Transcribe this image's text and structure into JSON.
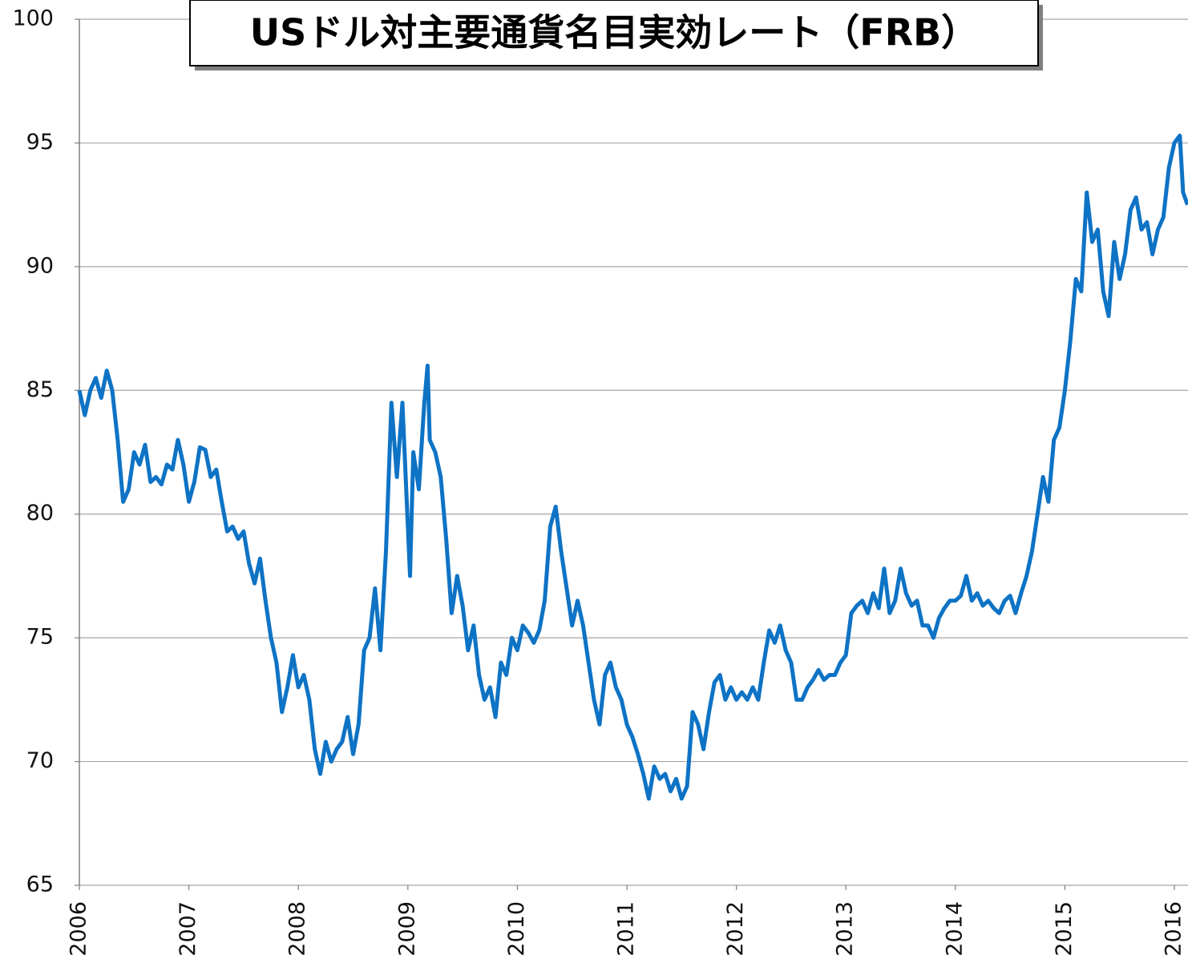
{
  "chart_data": {
    "type": "line",
    "title": "USドル対主要通貨名目実効レート（FRB）",
    "color": "#0e73c5",
    "grid": true,
    "ylim": [
      65,
      100
    ],
    "yticks": [
      65,
      70,
      75,
      80,
      85,
      90,
      95,
      100
    ],
    "xlim": [
      2006,
      2016.12
    ],
    "xticks": [
      2006,
      2007,
      2008,
      2009,
      2010,
      2011,
      2012,
      2013,
      2014,
      2015,
      2016
    ],
    "x": [
      2006.0,
      2006.05,
      2006.1,
      2006.15,
      2006.2,
      2006.25,
      2006.3,
      2006.35,
      2006.4,
      2006.45,
      2006.5,
      2006.55,
      2006.6,
      2006.65,
      2006.7,
      2006.75,
      2006.8,
      2006.85,
      2006.9,
      2006.95,
      2007.0,
      2007.05,
      2007.1,
      2007.15,
      2007.2,
      2007.25,
      2007.3,
      2007.35,
      2007.4,
      2007.45,
      2007.5,
      2007.55,
      2007.6,
      2007.65,
      2007.7,
      2007.75,
      2007.8,
      2007.85,
      2007.9,
      2007.95,
      2008.0,
      2008.05,
      2008.1,
      2008.15,
      2008.2,
      2008.25,
      2008.3,
      2008.35,
      2008.4,
      2008.45,
      2008.5,
      2008.55,
      2008.6,
      2008.65,
      2008.7,
      2008.75,
      2008.8,
      2008.85,
      2008.9,
      2008.95,
      2009.0,
      2009.02,
      2009.05,
      2009.1,
      2009.15,
      2009.18,
      2009.2,
      2009.25,
      2009.3,
      2009.35,
      2009.4,
      2009.45,
      2009.5,
      2009.55,
      2009.6,
      2009.65,
      2009.7,
      2009.75,
      2009.8,
      2009.85,
      2009.9,
      2009.95,
      2010.0,
      2010.05,
      2010.1,
      2010.15,
      2010.2,
      2010.25,
      2010.3,
      2010.35,
      2010.4,
      2010.45,
      2010.5,
      2010.55,
      2010.6,
      2010.65,
      2010.7,
      2010.75,
      2010.8,
      2010.85,
      2010.9,
      2010.95,
      2011.0,
      2011.05,
      2011.1,
      2011.15,
      2011.2,
      2011.25,
      2011.3,
      2011.35,
      2011.4,
      2011.45,
      2011.5,
      2011.55,
      2011.6,
      2011.65,
      2011.7,
      2011.75,
      2011.8,
      2011.85,
      2011.9,
      2011.95,
      2012.0,
      2012.05,
      2012.1,
      2012.15,
      2012.2,
      2012.25,
      2012.3,
      2012.35,
      2012.4,
      2012.45,
      2012.5,
      2012.55,
      2012.6,
      2012.65,
      2012.7,
      2012.75,
      2012.8,
      2012.85,
      2012.9,
      2012.95,
      2013.0,
      2013.05,
      2013.1,
      2013.15,
      2013.2,
      2013.25,
      2013.3,
      2013.35,
      2013.4,
      2013.45,
      2013.5,
      2013.55,
      2013.6,
      2013.65,
      2013.7,
      2013.75,
      2013.8,
      2013.85,
      2013.9,
      2013.95,
      2014.0,
      2014.05,
      2014.1,
      2014.15,
      2014.2,
      2014.25,
      2014.3,
      2014.35,
      2014.4,
      2014.45,
      2014.5,
      2014.55,
      2014.6,
      2014.65,
      2014.7,
      2014.75,
      2014.8,
      2014.85,
      2014.9,
      2014.95,
      2015.0,
      2015.05,
      2015.1,
      2015.15,
      2015.2,
      2015.25,
      2015.3,
      2015.35,
      2015.4,
      2015.45,
      2015.5,
      2015.55,
      2015.6,
      2015.65,
      2015.7,
      2015.75,
      2015.8,
      2015.85,
      2015.9,
      2015.95,
      2016.0,
      2016.05,
      2016.08,
      2016.12
    ],
    "values": [
      85,
      84,
      85,
      85.5,
      84.7,
      85.8,
      85,
      83,
      80.5,
      81,
      82.5,
      82,
      82.8,
      81.3,
      81.5,
      81.2,
      82,
      81.8,
      83,
      82,
      80.5,
      81.3,
      82.7,
      82.6,
      81.5,
      81.8,
      80.5,
      79.3,
      79.5,
      79,
      79.3,
      78,
      77.2,
      78.2,
      76.5,
      75,
      74,
      72,
      73,
      74.3,
      73,
      73.5,
      72.5,
      70.5,
      69.5,
      70.8,
      70,
      70.5,
      70.8,
      71.8,
      70.3,
      71.5,
      74.5,
      75,
      77,
      74.5,
      78.5,
      84.5,
      81.5,
      84.5,
      79.5,
      77.5,
      82.5,
      81,
      84.5,
      86,
      83,
      82.5,
      81.5,
      79,
      76,
      77.5,
      76.3,
      74.5,
      75.5,
      73.5,
      72.5,
      73,
      71.8,
      74,
      73.5,
      75,
      74.5,
      75.5,
      75.2,
      74.8,
      75.3,
      76.5,
      79.5,
      80.3,
      78.5,
      77,
      75.5,
      76.5,
      75.5,
      74,
      72.5,
      71.5,
      73.5,
      74,
      73,
      72.5,
      71.5,
      71,
      70.3,
      69.5,
      68.5,
      69.8,
      69.3,
      69.5,
      68.8,
      69.3,
      68.5,
      69,
      72,
      71.5,
      70.5,
      72,
      73.2,
      73.5,
      72.5,
      73,
      72.5,
      72.8,
      72.5,
      73,
      72.5,
      74,
      75.3,
      74.8,
      75.5,
      74.5,
      74,
      72.5,
      72.5,
      73,
      73.3,
      73.7,
      73.3,
      73.5,
      73.5,
      74,
      74.3,
      76,
      76.3,
      76.5,
      76,
      76.8,
      76.2,
      77.8,
      76,
      76.5,
      77.8,
      76.8,
      76.3,
      76.5,
      75.5,
      75.5,
      75,
      75.8,
      76.2,
      76.5,
      76.5,
      76.7,
      77.5,
      76.5,
      76.8,
      76.3,
      76.5,
      76.2,
      76,
      76.5,
      76.7,
      76,
      76.8,
      77.5,
      78.5,
      80,
      81.5,
      80.5,
      83,
      83.5,
      85,
      87,
      89.5,
      89,
      93,
      91,
      91.5,
      89,
      88,
      91,
      89.5,
      90.5,
      92.3,
      92.8,
      91.5,
      91.8,
      90.5,
      91.5,
      92,
      94,
      95,
      95.3,
      93,
      92.5
    ]
  }
}
